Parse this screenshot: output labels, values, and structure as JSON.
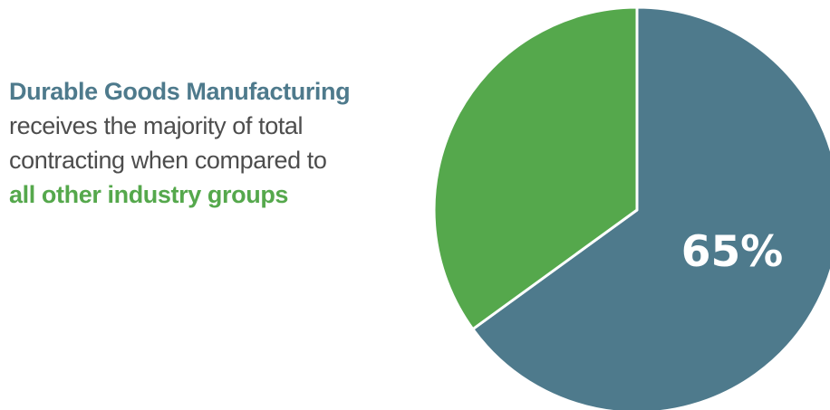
{
  "caption": {
    "line1": "Durable Goods Manufacturing",
    "line2": "receives the majority of total",
    "line3": "contracting when compared to",
    "line4": "all other industry groups"
  },
  "colors": {
    "durable": "#4e7a8c",
    "other": "#55a84c",
    "text": "#4d4d4d",
    "separator": "#ffffff"
  },
  "chart_data": {
    "type": "pie",
    "slices": [
      {
        "value": 65,
        "color": "#4e7a8c",
        "label": "65%"
      },
      {
        "value": 35,
        "color": "#55a84c",
        "label": ""
      }
    ],
    "start_angle": "12 o'clock",
    "direction": "clockwise"
  }
}
